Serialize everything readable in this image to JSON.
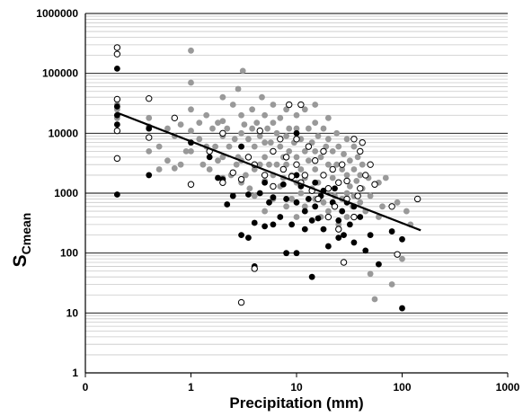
{
  "chart_data": {
    "type": "scatter",
    "title": "",
    "xlabel": "Precipitation (mm)",
    "ylabel": {
      "main": "S",
      "subscript": "Cmean"
    },
    "x_scale": "log",
    "y_scale": "log",
    "xlim": [
      0.1,
      1000
    ],
    "ylim": [
      1,
      1000000
    ],
    "x_tick_labels": [
      "0",
      "1",
      "10",
      "100",
      "1000"
    ],
    "y_tick_labels": [
      "1",
      "10",
      "100",
      "1000",
      "10000",
      "100000",
      "1000000"
    ],
    "grid": {
      "major_horizontal": true,
      "minor_horizontal": true,
      "vertical": false
    },
    "legend": "none",
    "colors": {
      "series_open": "#000000",
      "series_black": "#000000",
      "series_gray": "#999999",
      "trend_line": "#000000",
      "major_grid": "#000000",
      "minor_grid": "#c8c8c8"
    },
    "trend_line": {
      "x": [
        0.2,
        150
      ],
      "y": [
        22000,
        240
      ]
    },
    "series": [
      {
        "marker": "gray-filled-circle",
        "points": [
          [
            0.2,
            30000
          ],
          [
            0.2,
            25000
          ],
          [
            0.2,
            18000
          ],
          [
            0.4,
            18000
          ],
          [
            0.4,
            13000
          ],
          [
            0.4,
            5000
          ],
          [
            0.5,
            6000
          ],
          [
            0.5,
            2500
          ],
          [
            0.6,
            12000
          ],
          [
            0.6,
            3500
          ],
          [
            0.7,
            9000
          ],
          [
            0.7,
            2600
          ],
          [
            0.8,
            14000
          ],
          [
            0.8,
            3000
          ],
          [
            0.9,
            5000
          ],
          [
            1.0,
            240000
          ],
          [
            1.0,
            70000
          ],
          [
            1.0,
            25000
          ],
          [
            1.0,
            11000
          ],
          [
            1.0,
            5000
          ],
          [
            1.2,
            15000
          ],
          [
            1.2,
            8000
          ],
          [
            1.3,
            3000
          ],
          [
            1.4,
            20000
          ],
          [
            1.4,
            6000
          ],
          [
            1.5,
            2500
          ],
          [
            1.6,
            12000
          ],
          [
            1.7,
            6000
          ],
          [
            1.8,
            15000
          ],
          [
            1.8,
            3500
          ],
          [
            2.0,
            40000
          ],
          [
            2.0,
            16000
          ],
          [
            2.0,
            9000
          ],
          [
            2.0,
            4000
          ],
          [
            2.0,
            1800
          ],
          [
            2.2,
            12000
          ],
          [
            2.3,
            6000
          ],
          [
            2.4,
            2000
          ],
          [
            2.5,
            30000
          ],
          [
            2.6,
            8000
          ],
          [
            2.7,
            3000
          ],
          [
            2.8,
            55000
          ],
          [
            2.8,
            4000
          ],
          [
            3.0,
            20000
          ],
          [
            3.0,
            10000
          ],
          [
            3.0,
            6000
          ],
          [
            3.0,
            3500
          ],
          [
            3.0,
            1500
          ],
          [
            3.1,
            110000
          ],
          [
            3.2,
            14000
          ],
          [
            3.3,
            2000
          ],
          [
            3.5,
            8000
          ],
          [
            3.5,
            4000
          ],
          [
            3.6,
            1200
          ],
          [
            3.8,
            25000
          ],
          [
            3.8,
            12000
          ],
          [
            4.0,
            6000
          ],
          [
            4.0,
            2500
          ],
          [
            4.0,
            900
          ],
          [
            4.2,
            15000
          ],
          [
            4.5,
            9000
          ],
          [
            4.5,
            3000
          ],
          [
            4.7,
            40000
          ],
          [
            5.0,
            20000
          ],
          [
            5.0,
            7000
          ],
          [
            5.0,
            4000
          ],
          [
            5.0,
            1600
          ],
          [
            5.0,
            500
          ],
          [
            5.3,
            12000
          ],
          [
            5.5,
            3000
          ],
          [
            5.7,
            7000
          ],
          [
            6.0,
            30000
          ],
          [
            6.0,
            15000
          ],
          [
            6.0,
            5000
          ],
          [
            6.0,
            2000
          ],
          [
            6.0,
            800
          ],
          [
            6.5,
            10000
          ],
          [
            6.5,
            3000
          ],
          [
            7.0,
            18000
          ],
          [
            7.0,
            6000
          ],
          [
            7.0,
            1300
          ],
          [
            7.5,
            4000
          ],
          [
            7.5,
            1800
          ],
          [
            8.0,
            25000
          ],
          [
            8.0,
            9000
          ],
          [
            8.0,
            3000
          ],
          [
            8.0,
            600
          ],
          [
            8.5,
            12000
          ],
          [
            8.5,
            5000
          ],
          [
            9.0,
            2000
          ],
          [
            9.0,
            800
          ],
          [
            9.5,
            7000
          ],
          [
            10.0,
            20000
          ],
          [
            10.0,
            12000
          ],
          [
            10.0,
            4000
          ],
          [
            10.0,
            1500
          ],
          [
            10.0,
            400
          ],
          [
            11.0,
            8000
          ],
          [
            11.0,
            2500
          ],
          [
            11.0,
            1000
          ],
          [
            12.0,
            25000
          ],
          [
            12.0,
            5000
          ],
          [
            12.0,
            1800
          ],
          [
            12.0,
            600
          ],
          [
            13.0,
            12000
          ],
          [
            13.0,
            3500
          ],
          [
            14.0,
            7000
          ],
          [
            14.0,
            1200
          ],
          [
            15.0,
            30000
          ],
          [
            15.0,
            15000
          ],
          [
            15.0,
            5000
          ],
          [
            15.0,
            2500
          ],
          [
            15.0,
            800
          ],
          [
            16.0,
            9000
          ],
          [
            16.0,
            1500
          ],
          [
            17.0,
            4000
          ],
          [
            17.0,
            400
          ],
          [
            18.0,
            12000
          ],
          [
            18.0,
            2000
          ],
          [
            18.0,
            700
          ],
          [
            19.0,
            6000
          ],
          [
            20.0,
            18000
          ],
          [
            20.0,
            8000
          ],
          [
            20.0,
            3000
          ],
          [
            20.0,
            1200
          ],
          [
            20.0,
            500
          ],
          [
            22.0,
            5000
          ],
          [
            22.0,
            1800
          ],
          [
            23.0,
            900
          ],
          [
            24.0,
            10000
          ],
          [
            24.0,
            3000
          ],
          [
            25.0,
            6000
          ],
          [
            25.0,
            1500
          ],
          [
            25.0,
            300
          ],
          [
            27.0,
            2500
          ],
          [
            27.0,
            800
          ],
          [
            28.0,
            4500
          ],
          [
            30.0,
            8000
          ],
          [
            30.0,
            2000
          ],
          [
            30.0,
            1000
          ],
          [
            30.0,
            400
          ],
          [
            32.0,
            3500
          ],
          [
            32.0,
            1300
          ],
          [
            34.0,
            600
          ],
          [
            35.0,
            6000
          ],
          [
            35.0,
            2500
          ],
          [
            35.0,
            900
          ],
          [
            37.0,
            1600
          ],
          [
            38.0,
            4000
          ],
          [
            40.0,
            2000
          ],
          [
            40.0,
            700
          ],
          [
            42.0,
            3000
          ],
          [
            42.0,
            1200
          ],
          [
            45.0,
            500
          ],
          [
            48.0,
            1800
          ],
          [
            50.0,
            900
          ],
          [
            50.0,
            45
          ],
          [
            55.0,
            17
          ],
          [
            60.0,
            1500
          ],
          [
            60.0,
            400
          ],
          [
            65.0,
            600
          ],
          [
            70.0,
            1800
          ],
          [
            80.0,
            30
          ],
          [
            90.0,
            700
          ],
          [
            100.0,
            80
          ],
          [
            110.0,
            500
          ],
          [
            120.0,
            300
          ]
        ]
      },
      {
        "marker": "black-filled-circle",
        "points": [
          [
            0.2,
            120000
          ],
          [
            0.2,
            28000
          ],
          [
            0.2,
            20000
          ],
          [
            0.2,
            14000
          ],
          [
            0.2,
            950
          ],
          [
            0.4,
            12000
          ],
          [
            0.4,
            2000
          ],
          [
            1.0,
            7000
          ],
          [
            1.5,
            4000
          ],
          [
            1.8,
            1800
          ],
          [
            2.0,
            1700
          ],
          [
            2.2,
            650
          ],
          [
            2.5,
            900
          ],
          [
            3.0,
            6000
          ],
          [
            3.0,
            200
          ],
          [
            3.5,
            950
          ],
          [
            3.5,
            180
          ],
          [
            4.0,
            320
          ],
          [
            4.0,
            60
          ],
          [
            4.5,
            1000
          ],
          [
            5.0,
            1500
          ],
          [
            5.0,
            280
          ],
          [
            5.5,
            700
          ],
          [
            6.0,
            850
          ],
          [
            6.0,
            300
          ],
          [
            7.0,
            400
          ],
          [
            7.5,
            1400
          ],
          [
            8.0,
            100
          ],
          [
            8.0,
            800
          ],
          [
            9.0,
            300
          ],
          [
            10.0,
            10000
          ],
          [
            10.0,
            2000
          ],
          [
            10.0,
            700
          ],
          [
            10.0,
            100
          ],
          [
            11.0,
            1300
          ],
          [
            12.0,
            500
          ],
          [
            12.0,
            250
          ],
          [
            13.0,
            800
          ],
          [
            14.0,
            40
          ],
          [
            14.0,
            350
          ],
          [
            15.0,
            1500
          ],
          [
            15.0,
            600
          ],
          [
            16.0,
            380
          ],
          [
            17.0,
            900
          ],
          [
            18.0,
            250
          ],
          [
            18.0,
            1100
          ],
          [
            20.0,
            400
          ],
          [
            20.0,
            130
          ],
          [
            22.0,
            700
          ],
          [
            23.0,
            1200
          ],
          [
            25.0,
            350
          ],
          [
            25.0,
            180
          ],
          [
            27.0,
            500
          ],
          [
            28.0,
            200
          ],
          [
            30.0,
            700
          ],
          [
            32.0,
            300
          ],
          [
            35.0,
            150
          ],
          [
            35.0,
            600
          ],
          [
            40.0,
            400
          ],
          [
            45.0,
            110
          ],
          [
            50.0,
            200
          ],
          [
            60.0,
            65
          ],
          [
            80.0,
            230
          ],
          [
            100.0,
            170
          ],
          [
            100.0,
            12
          ]
        ]
      },
      {
        "marker": "open-circle",
        "points": [
          [
            0.2,
            270000
          ],
          [
            0.2,
            210000
          ],
          [
            0.2,
            37000
          ],
          [
            0.2,
            11000
          ],
          [
            0.2,
            3800
          ],
          [
            0.4,
            38000
          ],
          [
            0.4,
            8500
          ],
          [
            0.7,
            18000
          ],
          [
            1.0,
            1400
          ],
          [
            1.5,
            5000
          ],
          [
            2.0,
            10000
          ],
          [
            2.0,
            1500
          ],
          [
            2.5,
            2200
          ],
          [
            3.0,
            15
          ],
          [
            3.0,
            1700
          ],
          [
            3.5,
            4000
          ],
          [
            4.0,
            55
          ],
          [
            4.0,
            3000
          ],
          [
            4.5,
            11000
          ],
          [
            5.0,
            2000
          ],
          [
            6.0,
            1300
          ],
          [
            6.0,
            5000
          ],
          [
            7.0,
            8000
          ],
          [
            7.5,
            2500
          ],
          [
            8.0,
            4000
          ],
          [
            8.5,
            30000
          ],
          [
            9.0,
            1900
          ],
          [
            10.0,
            8000
          ],
          [
            10.0,
            3000
          ],
          [
            11.0,
            30000
          ],
          [
            11.0,
            1500
          ],
          [
            12.0,
            2000
          ],
          [
            13.0,
            6000
          ],
          [
            14.0,
            1100
          ],
          [
            15.0,
            3500
          ],
          [
            16.0,
            800
          ],
          [
            18.0,
            5000
          ],
          [
            18.0,
            2000
          ],
          [
            20.0,
            1200
          ],
          [
            20.0,
            400
          ],
          [
            22.0,
            2500
          ],
          [
            23.0,
            600
          ],
          [
            25.0,
            1500
          ],
          [
            25.0,
            250
          ],
          [
            27.0,
            3000
          ],
          [
            28.0,
            70
          ],
          [
            30.0,
            800
          ],
          [
            30.0,
            1600
          ],
          [
            35.0,
            8000
          ],
          [
            35.0,
            400
          ],
          [
            38.0,
            900
          ],
          [
            40.0,
            1200
          ],
          [
            40.0,
            5000
          ],
          [
            42.0,
            7000
          ],
          [
            45.0,
            2000
          ],
          [
            50.0,
            3000
          ],
          [
            55.0,
            1400
          ],
          [
            80.0,
            600
          ],
          [
            90.0,
            95
          ],
          [
            140.0,
            800
          ]
        ]
      }
    ]
  }
}
